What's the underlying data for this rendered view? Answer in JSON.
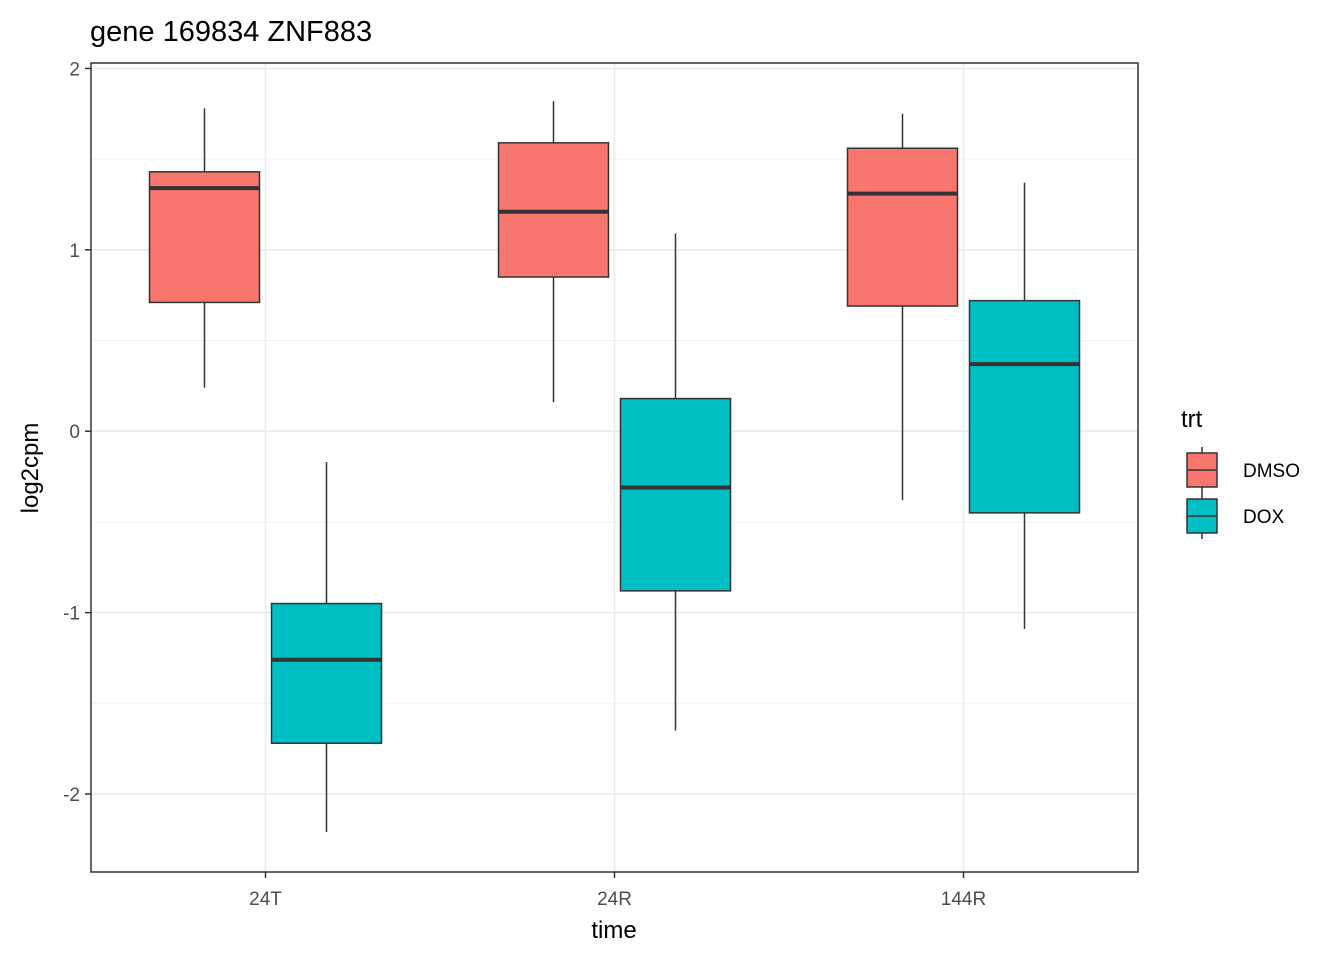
{
  "chart_data": {
    "type": "boxplot",
    "title": "gene 169834 ZNF883",
    "xlabel": "time",
    "ylabel": "log2cpm",
    "categories": [
      "24T",
      "24R",
      "144R"
    ],
    "ylim": [
      -2.43,
      2.03
    ],
    "yticks": [
      2,
      1,
      0,
      -1,
      -2
    ],
    "ytick_labels": [
      "2",
      "1",
      "0",
      "-1",
      "-2"
    ],
    "grid": true,
    "legend": {
      "title": "trt",
      "position": "right",
      "entries": [
        "DMSO",
        "DOX"
      ]
    },
    "series": [
      {
        "name": "DMSO",
        "color": "#F8766D",
        "boxes": [
          {
            "category": "24T",
            "min": 0.24,
            "q1": 0.71,
            "median": 1.34,
            "q3": 1.43,
            "max": 1.78
          },
          {
            "category": "24R",
            "min": 0.16,
            "q1": 0.85,
            "median": 1.21,
            "q3": 1.59,
            "max": 1.82
          },
          {
            "category": "144R",
            "min": -0.38,
            "q1": 0.69,
            "median": 1.31,
            "q3": 1.56,
            "max": 1.75
          }
        ]
      },
      {
        "name": "DOX",
        "color": "#00BFC4",
        "boxes": [
          {
            "category": "24T",
            "min": -2.21,
            "q1": -1.72,
            "median": -1.26,
            "q3": -0.95,
            "max": -0.17
          },
          {
            "category": "24R",
            "min": -1.65,
            "q1": -0.88,
            "median": -0.31,
            "q3": 0.18,
            "max": 1.09
          },
          {
            "category": "144R",
            "min": -1.09,
            "q1": -0.45,
            "median": 0.37,
            "q3": 0.72,
            "max": 1.37
          }
        ]
      }
    ]
  }
}
